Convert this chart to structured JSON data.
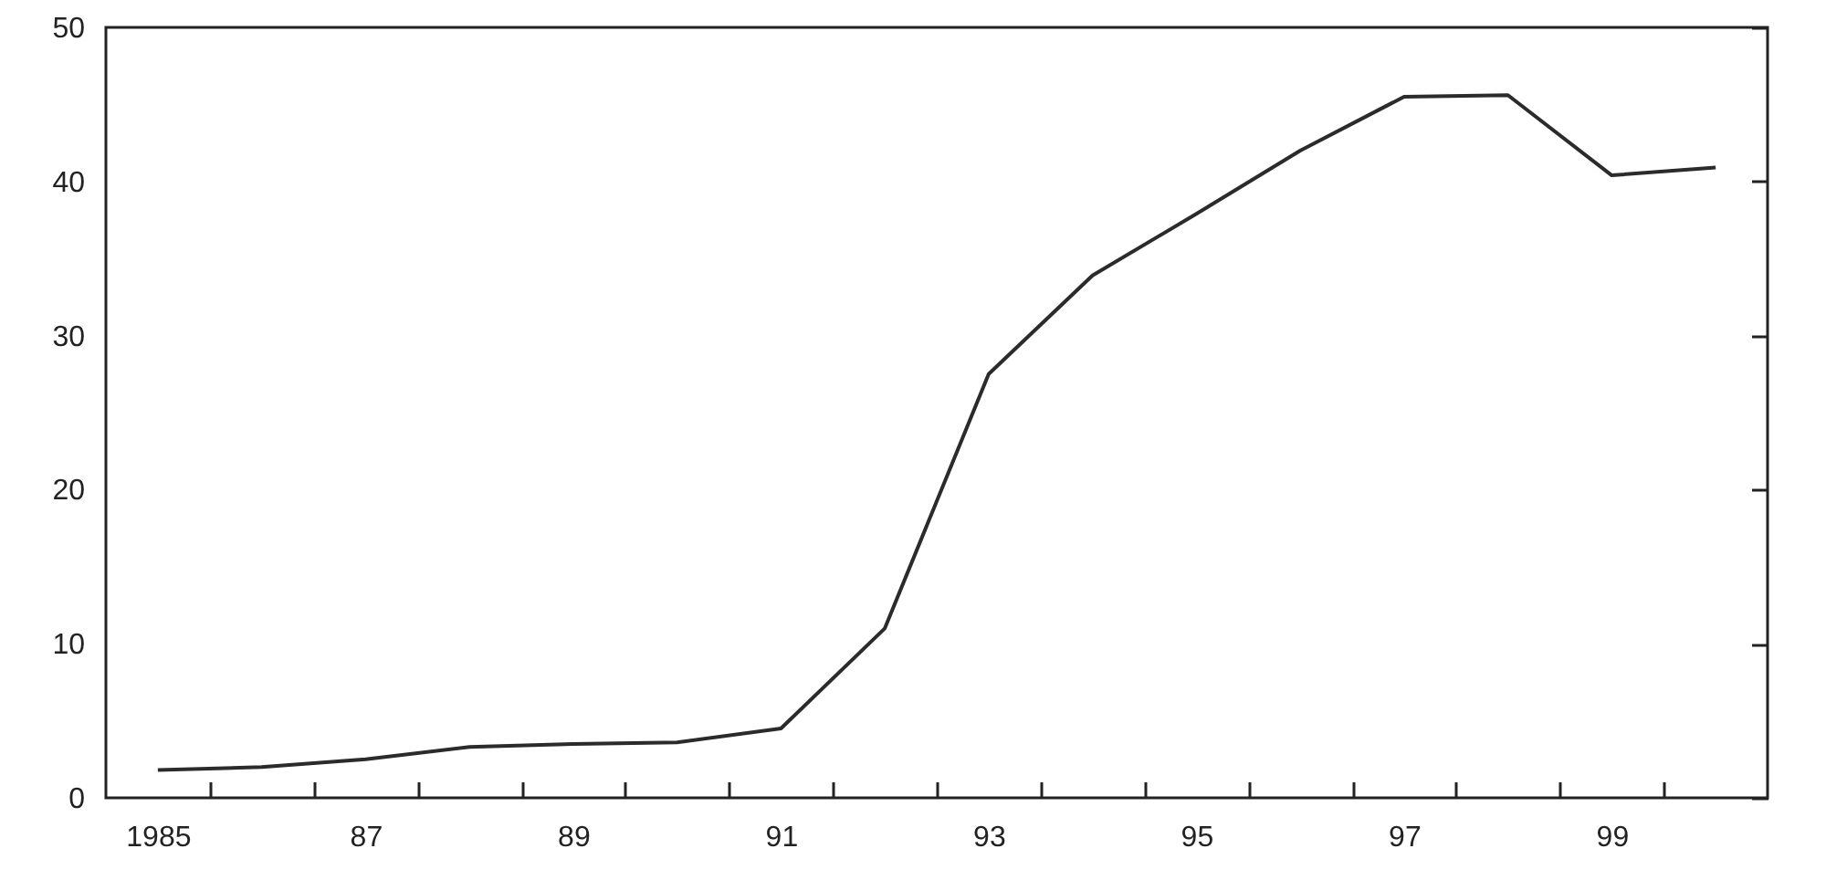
{
  "chart_data": {
    "type": "line",
    "x": [
      1985,
      1986,
      1987,
      1988,
      1989,
      1990,
      1991,
      1992,
      1993,
      1994,
      1995,
      1996,
      1997,
      1998,
      1999,
      2000
    ],
    "series": [
      {
        "color": "#2b2b2b",
        "values": [
          1.8,
          2.0,
          2.5,
          3.3,
          3.5,
          3.6,
          4.5,
          11,
          27.5,
          33.9,
          37.9,
          42,
          45.5,
          45.6,
          40.4,
          40.9
        ]
      }
    ],
    "xlim": [
      1984.5,
      2000.5
    ],
    "xticks": [
      {
        "value": 1985,
        "label": "1985"
      },
      {
        "value": 1985.5,
        "label": null
      },
      {
        "value": 1986.5,
        "label": null
      },
      {
        "value": 1987,
        "label": "87"
      },
      {
        "value": 1987.5,
        "label": null
      },
      {
        "value": 1988.5,
        "label": null
      },
      {
        "value": 1989,
        "label": "89"
      },
      {
        "value": 1989.5,
        "label": null
      },
      {
        "value": 1990.5,
        "label": null
      },
      {
        "value": 1991,
        "label": "91"
      },
      {
        "value": 1991.5,
        "label": null
      },
      {
        "value": 1992.5,
        "label": null
      },
      {
        "value": 1993,
        "label": "93"
      },
      {
        "value": 1993.5,
        "label": null
      },
      {
        "value": 1994.5,
        "label": null
      },
      {
        "value": 1995,
        "label": "95"
      },
      {
        "value": 1995.5,
        "label": null
      },
      {
        "value": 1996.5,
        "label": null
      },
      {
        "value": 1997,
        "label": "97"
      },
      {
        "value": 1997.5,
        "label": null
      },
      {
        "value": 1998.5,
        "label": null
      },
      {
        "value": 1999,
        "label": "99"
      },
      {
        "value": 1999.5,
        "label": null
      }
    ],
    "ylim": [
      0,
      50
    ],
    "yticks": [
      0,
      10,
      20,
      30,
      40,
      50
    ],
    "grid": false,
    "marker": "none",
    "line_style": "solid"
  }
}
